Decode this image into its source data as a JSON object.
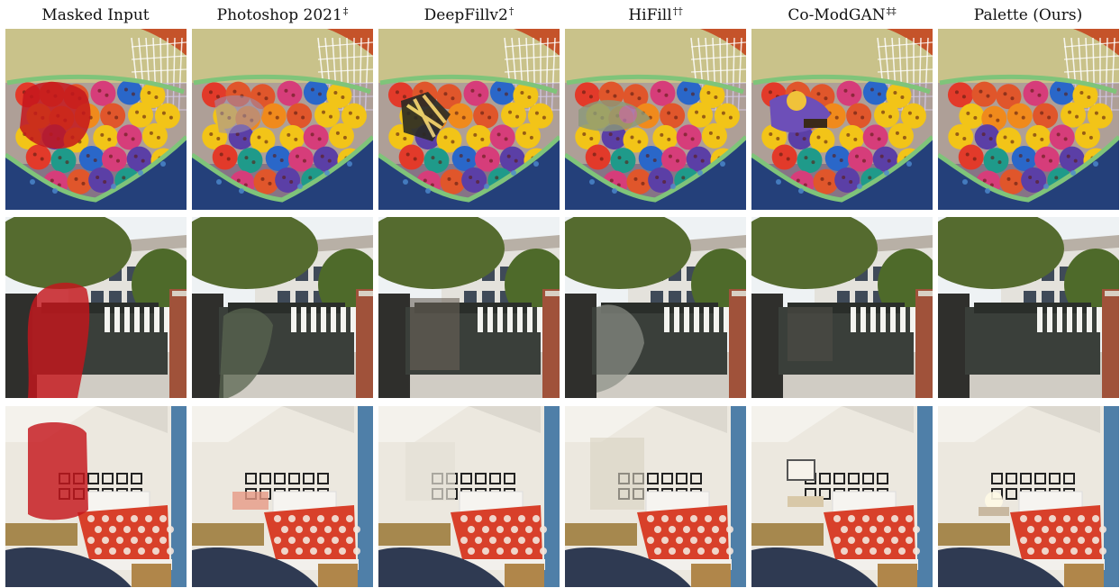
{
  "columns": [
    {
      "label": "Masked Input",
      "mark": ""
    },
    {
      "label": "Photoshop 2021",
      "mark": "‡"
    },
    {
      "label": "DeepFillv2",
      "mark": "†"
    },
    {
      "label": "HiFill",
      "mark": "††"
    },
    {
      "label": "Co-ModGAN",
      "mark": "‡‡"
    },
    {
      "label": "Palette (Ours)",
      "mark": ""
    }
  ],
  "rows": [
    "basket",
    "gate",
    "bedroom"
  ],
  "colors": {
    "mask": "#c4161c",
    "basket_wall": "#c9c28a",
    "basket_blue": "#24407a",
    "sky": "#eef2f4",
    "foliage": "#556b2f",
    "room_wall": "#ece8df",
    "duvet": "#d8402a",
    "door": "#4f7fa8"
  }
}
